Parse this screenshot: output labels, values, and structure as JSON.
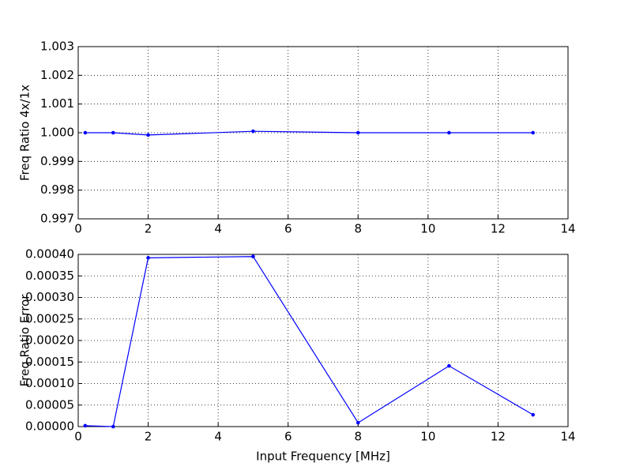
{
  "chart_data": [
    {
      "type": "line",
      "y_label": "Freq Ratio 4x/1x",
      "x": [
        0.2,
        1,
        2,
        5,
        8,
        10.6,
        13
      ],
      "series": [
        {
          "color": "#0000ff",
          "values": [
            1.0,
            1.0,
            0.99992,
            1.00005,
            1.0,
            1.0,
            1.0
          ]
        }
      ],
      "xlim": [
        0,
        14
      ],
      "xticks": [
        0,
        2,
        4,
        6,
        8,
        10,
        12,
        14
      ],
      "ylim": [
        0.997,
        1.003
      ],
      "yticks": [
        0.997,
        0.998,
        0.999,
        {
          "value": 1,
          "label": "1.000"
        },
        1.001,
        1.002,
        1.003
      ],
      "grid": true
    },
    {
      "type": "line",
      "x_label": "Input Frequency [MHz]",
      "y_label": "Freq Ratio Error",
      "x": [
        0.2,
        1,
        2,
        5,
        8,
        10.6,
        13
      ],
      "series": [
        {
          "color": "#0000ff",
          "values": [
            2e-06,
            0.0,
            0.000392,
            0.000395,
            9e-06,
            0.000141,
            2.75e-05
          ]
        }
      ],
      "xlim": [
        0,
        14
      ],
      "xticks": [
        0,
        2,
        4,
        6,
        8,
        10,
        12,
        14
      ],
      "ylim": [
        0,
        0.0004
      ],
      "yticks": [
        {
          "value": 0,
          "label": "0.00000"
        },
        {
          "value": 5e-05,
          "label": "0.00005"
        },
        {
          "value": 0.0001,
          "label": "0.00010"
        },
        {
          "value": 0.00015,
          "label": "0.00015"
        },
        {
          "value": 0.0002,
          "label": "0.00020"
        },
        {
          "value": 0.00025,
          "label": "0.00025"
        },
        {
          "value": 0.0003,
          "label": "0.00030"
        },
        {
          "value": 0.00035,
          "label": "0.00035"
        },
        {
          "value": 0.0004,
          "label": "0.00040"
        }
      ],
      "grid": true
    }
  ]
}
